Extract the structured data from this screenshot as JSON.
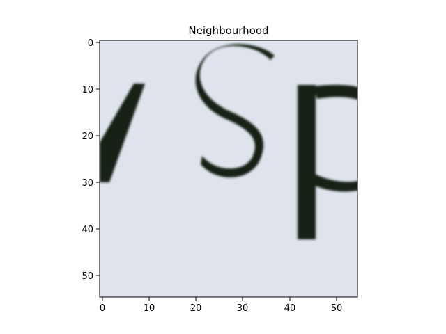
{
  "title": "Neighbourhood",
  "image": {
    "description_color_bg": "#dfe3ec",
    "ink_color": "#142218",
    "visible_glyphs": [
      "/",
      "S",
      "p"
    ]
  },
  "x_axis": {
    "ticks": [
      0,
      10,
      20,
      30,
      40,
      50
    ],
    "range": [
      -0.5,
      54.5
    ]
  },
  "y_axis": {
    "ticks": [
      0,
      10,
      20,
      30,
      40,
      50
    ],
    "range": [
      -0.5,
      54.5
    ],
    "inverted": true
  }
}
